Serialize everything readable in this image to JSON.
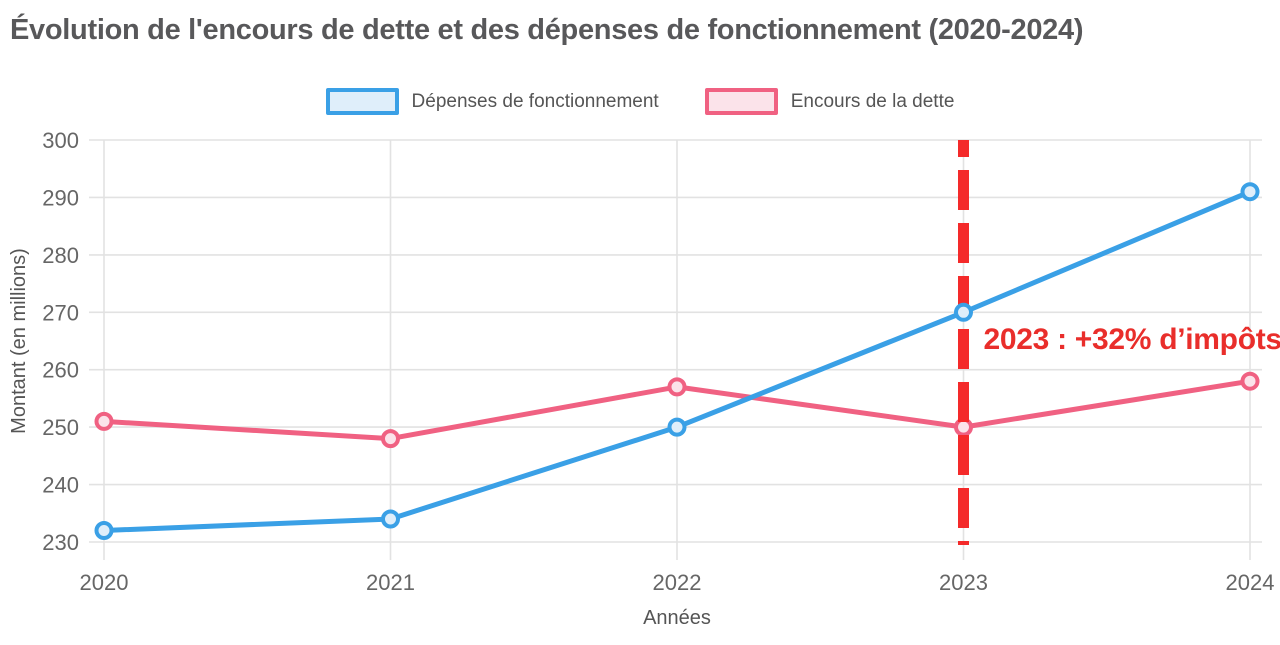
{
  "title": {
    "text": "Évolution de l'encours de dette et des dépenses de fonctionnement (2020-2024)",
    "color": "#58585a"
  },
  "legend": {
    "items": [
      {
        "label": "Dépenses de fonctionnement",
        "stroke": "#3aa0e6",
        "fill": "#dfeefa"
      },
      {
        "label": "Encours de la dette",
        "stroke": "#f06182",
        "fill": "#fbe3ea"
      }
    ]
  },
  "chart_data": {
    "type": "line",
    "categories": [
      "2020",
      "2021",
      "2022",
      "2023",
      "2024"
    ],
    "series": [
      {
        "name": "Dépenses de fonctionnement",
        "values": [
          232,
          234,
          250,
          270,
          291
        ],
        "color": "#3aa0e6",
        "point_fill": "#dfeefa"
      },
      {
        "name": "Encours de la dette",
        "values": [
          251,
          248,
          257,
          250,
          258
        ],
        "color": "#f06182",
        "point_fill": "#fbe3ea"
      }
    ],
    "title": "Évolution de l'encours de dette et des dépenses de fonctionnement (2020-2024)",
    "xlabel": "Années",
    "ylabel": "Montant (en millions)",
    "ylim": [
      230,
      300
    ],
    "yticks": [
      230,
      240,
      250,
      260,
      270,
      280,
      290,
      300
    ],
    "grid": true,
    "grid_color": "#e2e2e2",
    "legend_position": "top",
    "axis_text_color": "#666666",
    "annotation": {
      "text": "2023 : +32% d’impôts",
      "at_category": "2023",
      "style": "dashed-vertical-line",
      "line_color": "#f42a2a",
      "text_color": "#e92e2b"
    }
  }
}
